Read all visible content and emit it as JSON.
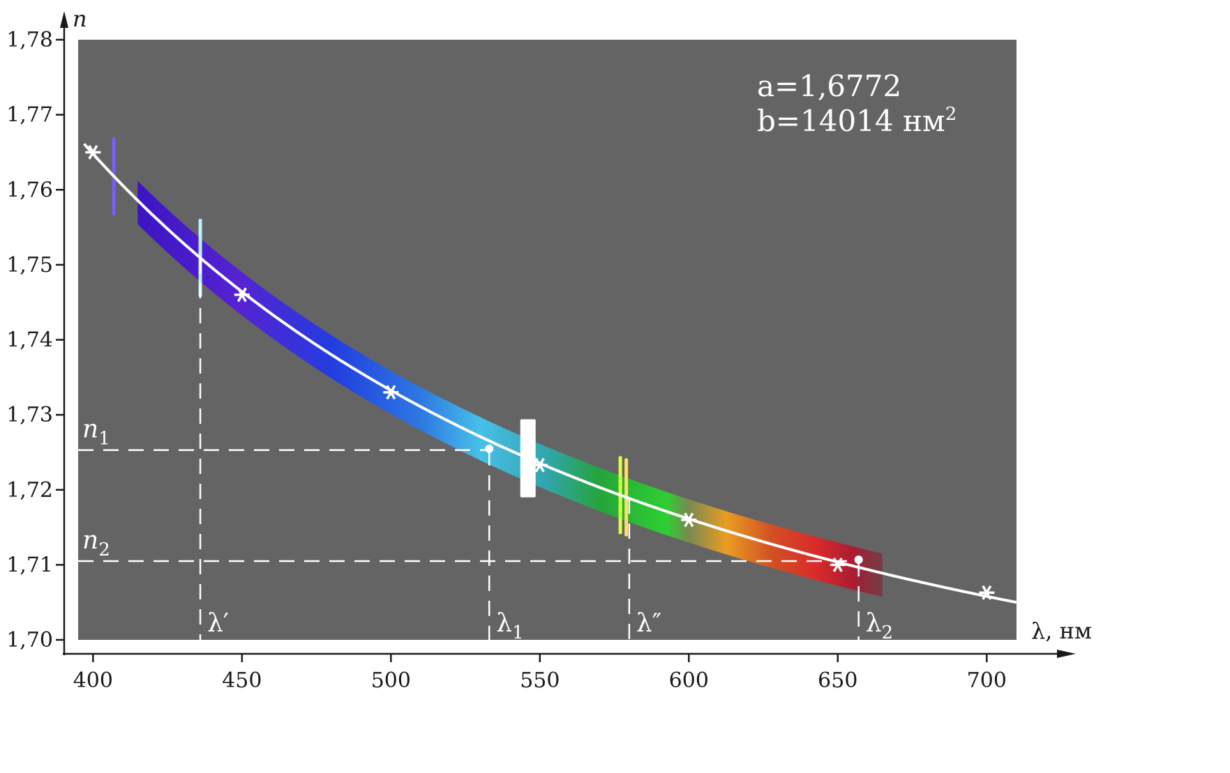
{
  "chart_data": {
    "type": "line",
    "title": "",
    "xlabel": "λ, нм",
    "ylabel": "n",
    "xlim": [
      395,
      710
    ],
    "ylim": [
      1.7,
      1.78
    ],
    "x_ticks": [
      400,
      450,
      500,
      550,
      600,
      650,
      700
    ],
    "y_ticks": [
      1.7,
      1.71,
      1.72,
      1.73,
      1.74,
      1.75,
      1.76,
      1.77,
      1.78
    ],
    "x_tick_labels": [
      "400",
      "450",
      "500",
      "550",
      "600",
      "650",
      "700"
    ],
    "y_tick_labels": [
      "1,70",
      "1,71",
      "1,72",
      "1,73",
      "1,74",
      "1,75",
      "1,76",
      "1,77",
      "1,78"
    ],
    "background_color": "#646464",
    "curve_color": "#ffffff",
    "params": {
      "a_text": "a=1,6772",
      "b_text": "b=14014 нм",
      "b_exp": "2",
      "a": 1.6772,
      "b": 14014
    },
    "curve": {
      "formula": "n = a + b/λ²",
      "x_range": [
        397,
        710
      ]
    },
    "measured_points": {
      "x": [
        400,
        450,
        500,
        550,
        600,
        650,
        700
      ],
      "y": [
        1.765,
        1.746,
        1.733,
        1.7233,
        1.716,
        1.71,
        1.7063
      ],
      "marker": "star"
    },
    "highlighted_points": {
      "x": [
        533,
        657
      ],
      "y": [
        1.7253,
        1.7105
      ],
      "marker": "dot"
    },
    "annotations": {
      "n1": {
        "label": "n",
        "sub": "1",
        "y": 1.7253
      },
      "n2": {
        "label": "n",
        "sub": "2",
        "y": 1.7105
      },
      "lambda_prime": {
        "label": "λ′",
        "x": 436
      },
      "lambda1": {
        "label": "λ",
        "sub": "1",
        "x": 533
      },
      "lambda_double_prime": {
        "label": "λ″",
        "x": 580
      },
      "lambda2": {
        "label": "λ",
        "sub": "2",
        "x": 657
      }
    },
    "spectrum_lines": {
      "x": [
        407,
        436,
        546,
        577,
        579
      ],
      "colors": [
        "#7a5cff",
        "#b8f0ff",
        "#ffffff",
        "#d8ff40",
        "#ffe060"
      ]
    }
  }
}
